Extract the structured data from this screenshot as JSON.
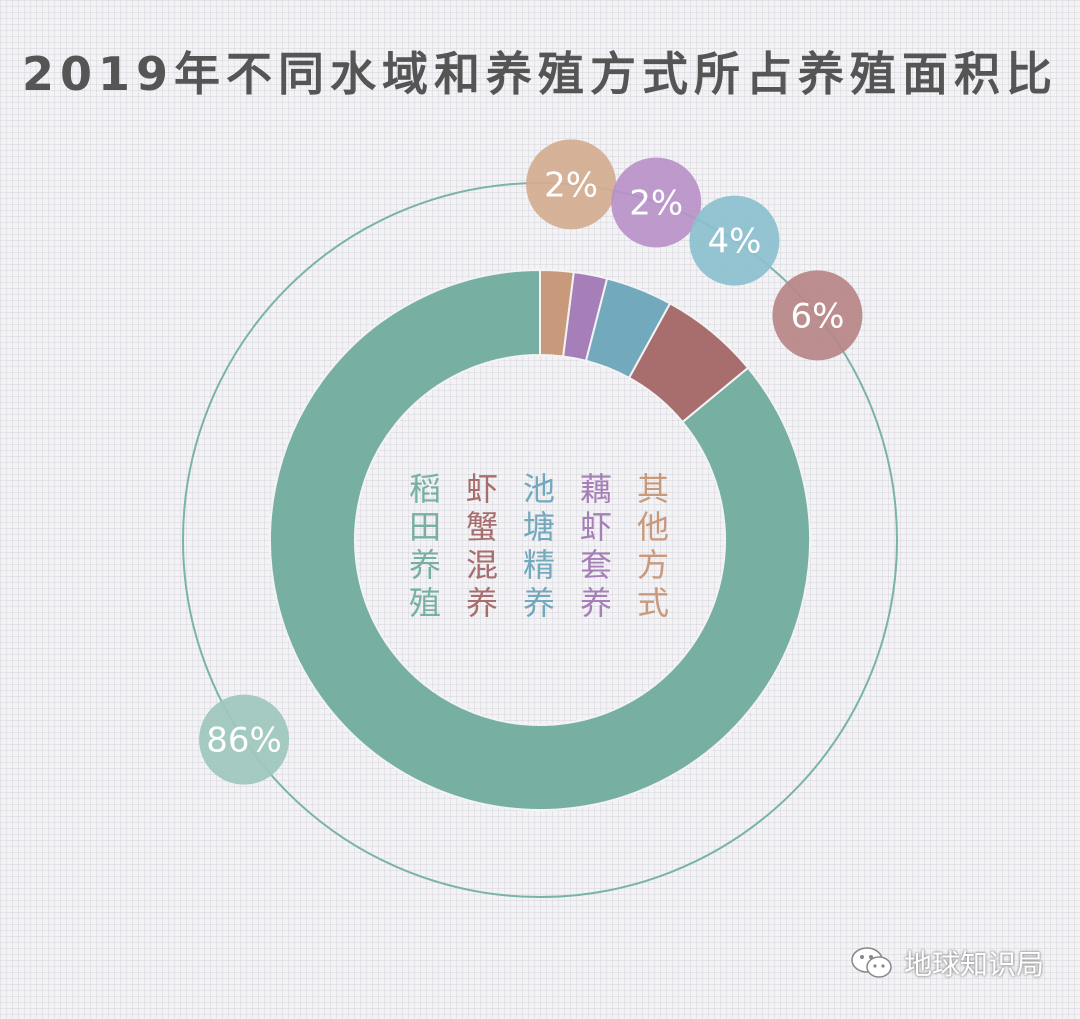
{
  "chart_data": {
    "type": "donut",
    "title": "2019年不同水域和养殖方式所占养殖面积比",
    "slices": [
      {
        "name": "其他方式",
        "value": 2,
        "label": "2%",
        "color": "#c9997c"
      },
      {
        "name": "藕虾套养",
        "value": 2,
        "label": "2%",
        "color": "#a77fb8"
      },
      {
        "name": "池塘精养",
        "value": 4,
        "label": "4%",
        "color": "#73a9bd"
      },
      {
        "name": "虾蟹混养",
        "value": 6,
        "label": "6%",
        "color": "#a86d6d"
      },
      {
        "name": "稻田养殖",
        "value": 86,
        "label": "86%",
        "color": "#77b0a3"
      }
    ],
    "legend_order": [
      "稻田养殖",
      "虾蟹混养",
      "池塘精养",
      "藕虾套养",
      "其他方式"
    ]
  },
  "watermark": "地球知识局",
  "colors": {
    "outer_ring": "#7ab3a8",
    "badge_rice": "#9ec7bd",
    "badge_other": "#d4ac90",
    "badge_lotus": "#b991c8",
    "badge_pond": "#8cbfce",
    "badge_shrimp": "#b98585"
  }
}
